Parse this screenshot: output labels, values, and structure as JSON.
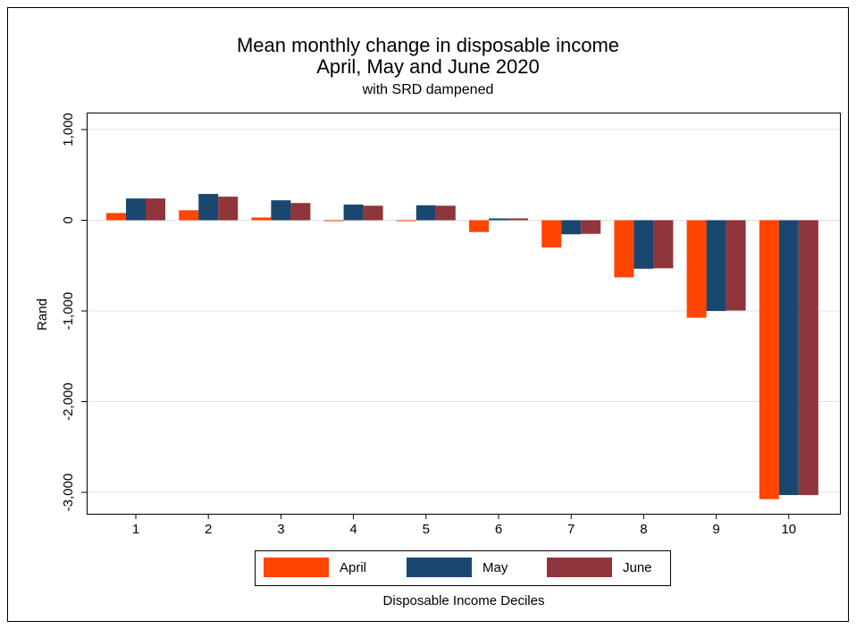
{
  "chart_data": {
    "type": "bar",
    "title": "Mean monthly change in disposable income",
    "title_line2": "April, May and June 2020",
    "subtitle": "with SRD dampened",
    "y_label": "Rand",
    "x_label": "Disposable Income Deciles",
    "categories": [
      "1",
      "2",
      "3",
      "4",
      "5",
      "6",
      "7",
      "8",
      "9",
      "10"
    ],
    "series": [
      {
        "name": "April",
        "color": "#ff4500",
        "values": [
          80,
          110,
          30,
          -10,
          -10,
          -130,
          -300,
          -630,
          -1075,
          -3075
        ]
      },
      {
        "name": "May",
        "color": "#1a476f",
        "values": [
          240,
          290,
          220,
          173,
          165,
          20,
          -155,
          -535,
          -1000,
          -3030
        ]
      },
      {
        "name": "June",
        "color": "#90353b",
        "values": [
          240,
          260,
          190,
          160,
          160,
          20,
          -150,
          -530,
          -995,
          -3030
        ]
      }
    ],
    "ylim": [
      -3236,
      1187
    ],
    "yticks": [
      {
        "value": -3000,
        "label": "-3,000"
      },
      {
        "value": -2000,
        "label": "-2,000"
      },
      {
        "value": -1000,
        "label": "-1,000"
      },
      0,
      {
        "value": 1000,
        "label": "1,000"
      }
    ],
    "grid": true
  }
}
